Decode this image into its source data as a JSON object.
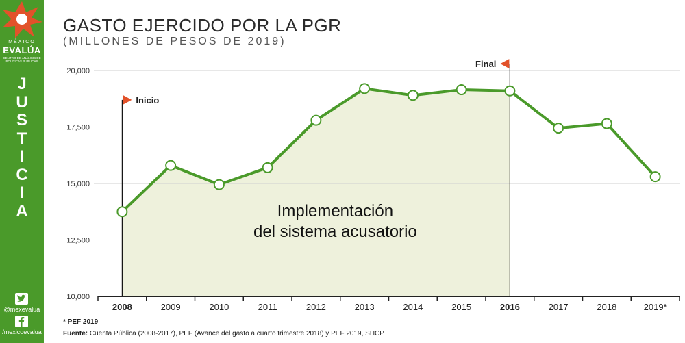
{
  "brand": {
    "mexico": "MÉXICO",
    "evalua": "EVALÚA",
    "centro": "CENTRO DE ANÁLISIS DE POLÍTICAS PÚBLICAS",
    "section_letters": [
      "J",
      "U",
      "S",
      "T",
      "I",
      "C",
      "I",
      "A"
    ],
    "twitter": "@mexevalua",
    "facebook": "/mexicoevalua"
  },
  "chart_data": {
    "type": "line",
    "title": "GASTO EJERCIDO POR LA PGR",
    "subtitle": "(MILLONES DE PESOS DE 2019)",
    "categories": [
      "2008",
      "2009",
      "2010",
      "2011",
      "2012",
      "2013",
      "2014",
      "2015",
      "2016",
      "2017",
      "2018",
      "2019*"
    ],
    "bold_categories": [
      "2008",
      "2016"
    ],
    "series": [
      {
        "values": [
          13750,
          15800,
          14950,
          15700,
          17800,
          19200,
          18900,
          19150,
          19100,
          17450,
          17650,
          15300
        ]
      }
    ],
    "ylim": [
      10000,
      20000
    ],
    "yticks": [
      10000,
      12500,
      15000,
      17500,
      20000
    ],
    "ytick_labels": [
      "10,000",
      "12,500",
      "15,000",
      "17,500",
      "20,000"
    ],
    "grid": true,
    "shaded_region": {
      "from": "2008",
      "to": "2016",
      "label_line1": "Implementación",
      "label_line2": "del sistema acusatorio"
    },
    "markers": [
      {
        "category": "2008",
        "label": "Inicio",
        "level": 18700
      },
      {
        "category": "2016",
        "label": "Final",
        "level": 20300
      }
    ],
    "colors": {
      "line": "#4a9a2a",
      "shade": "#eef1dc",
      "flag": "#e2522a",
      "grid": "#cfcfcf"
    }
  },
  "footer": {
    "note": "* PEF 2019",
    "source_label": "Fuente:",
    "source_text": "Cuenta Pública (2008-2017), PEF (Avance del gasto a cuarto trimestre 2018) y PEF 2019, SHCP"
  }
}
